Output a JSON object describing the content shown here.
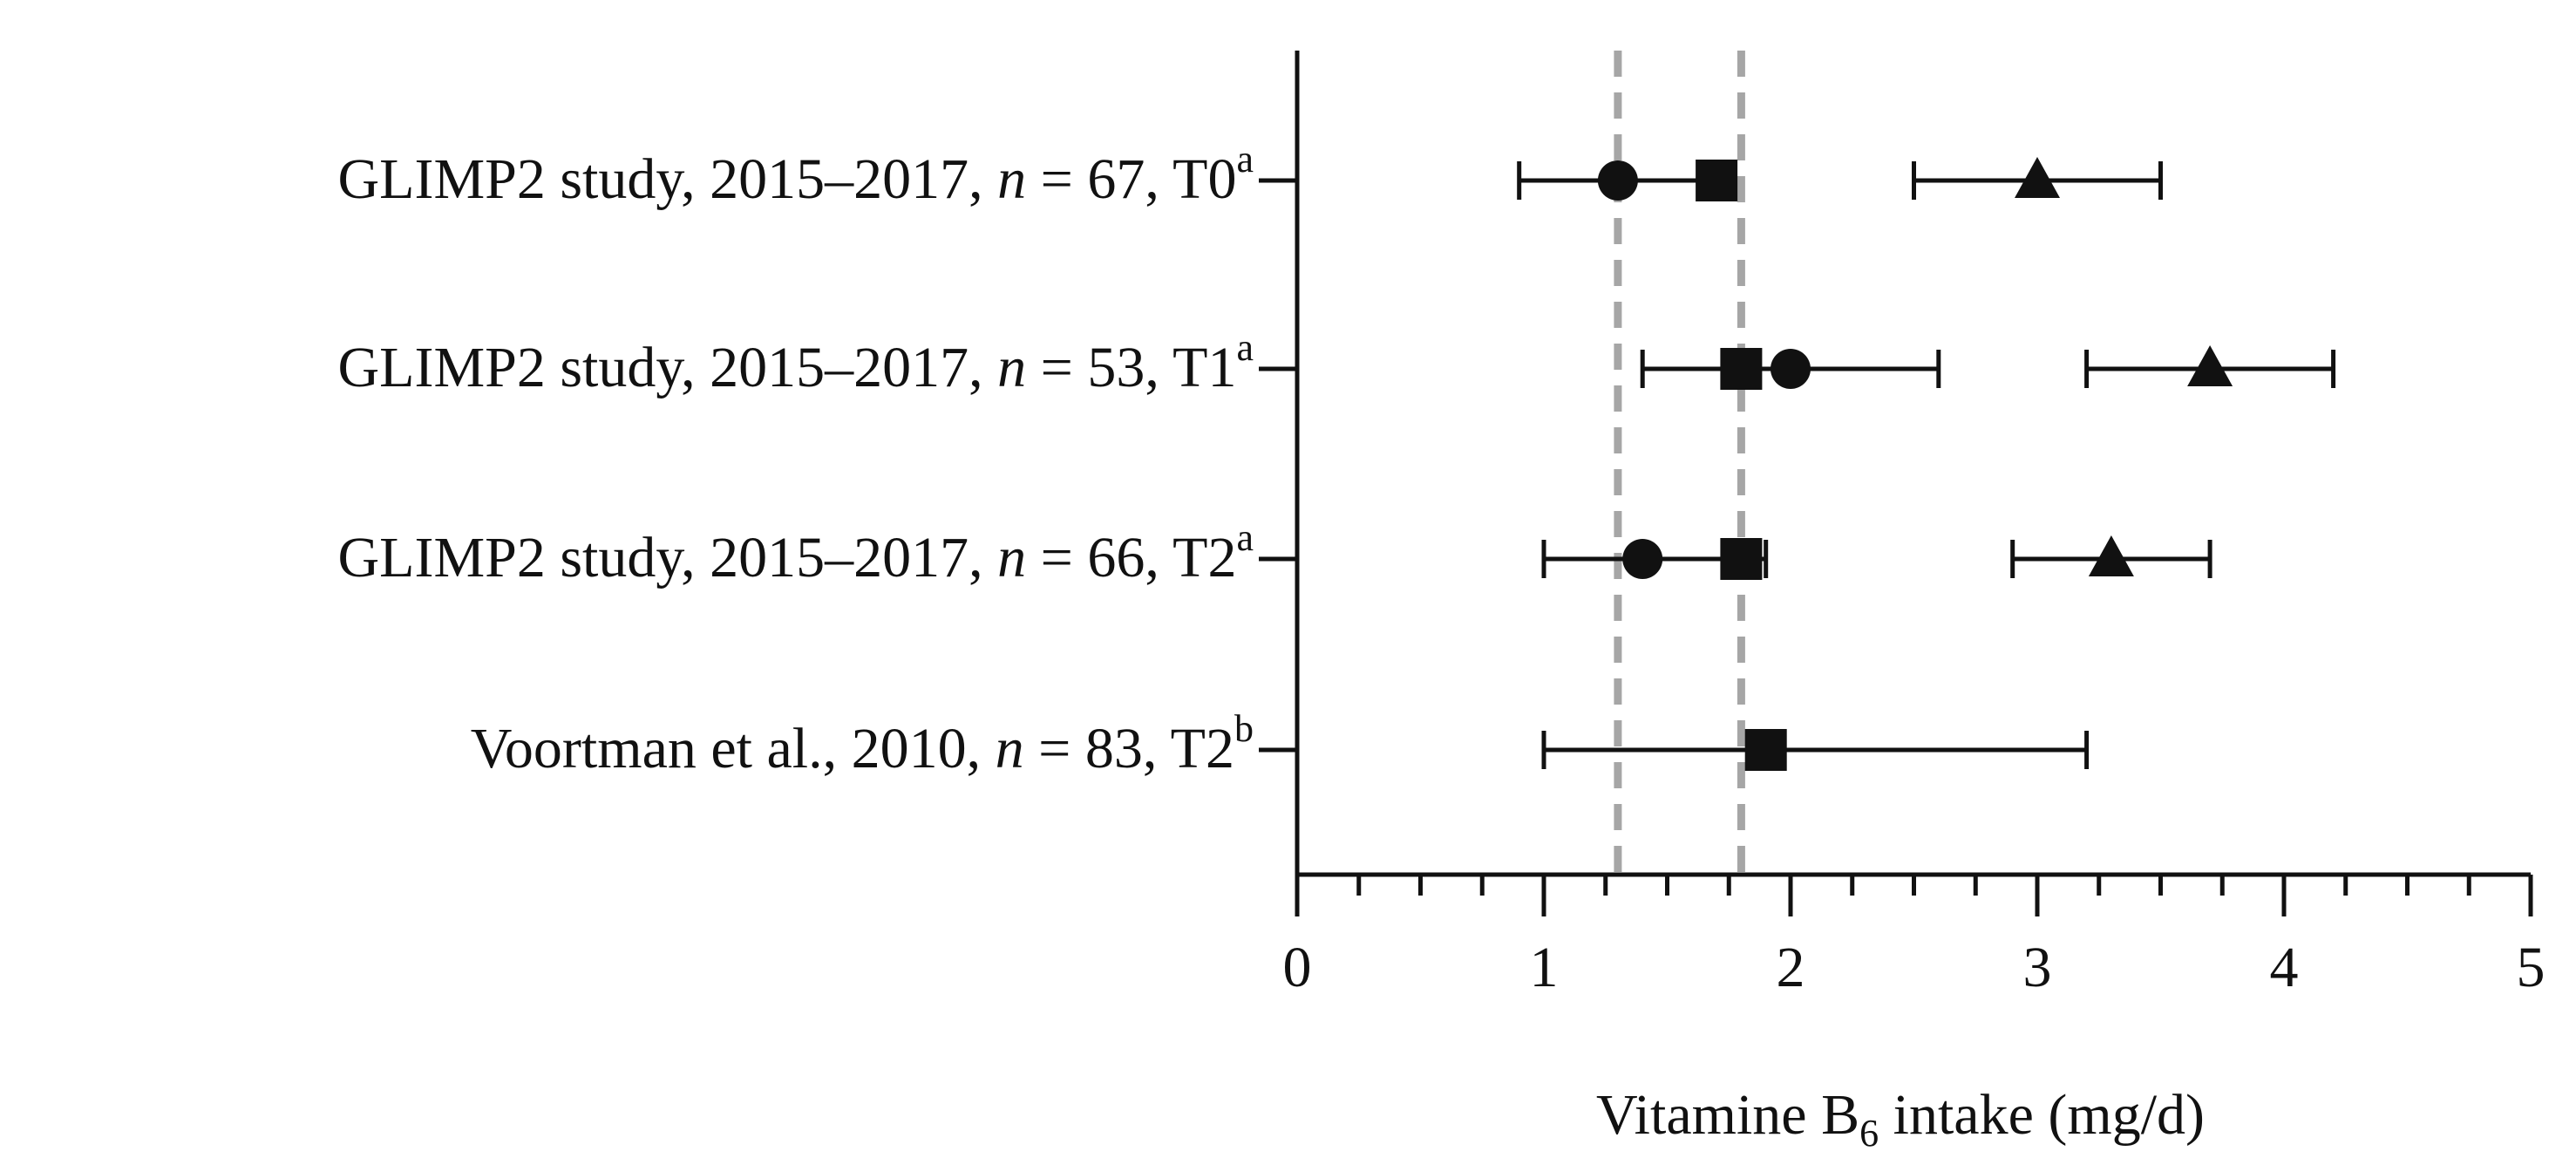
{
  "chart_data": {
    "type": "forest",
    "xlabel": {
      "main": "Vitamine B",
      "subscript": "6",
      "rest": " intake (mg/d)"
    },
    "xlim": [
      0,
      5
    ],
    "xticks_major": [
      0,
      1,
      2,
      3,
      4,
      5
    ],
    "xticks_minor_step": 0.25,
    "reference_lines": [
      1.3,
      1.8
    ],
    "colors": {
      "marker": "#111111",
      "reference": "#a6a6a6"
    },
    "rows": [
      {
        "label": {
          "prefix": "GLIMP2 study, 2015–2017, ",
          "n": "n",
          "mid": " = 67, T0",
          "sup": "a"
        },
        "points": [
          {
            "marker": "circle",
            "value": 1.3,
            "low": 0.9,
            "high": 1.7
          },
          {
            "marker": "square",
            "value": 1.7,
            "low": null,
            "high": null
          },
          {
            "marker": "triangle",
            "value": 3.0,
            "low": 2.5,
            "high": 3.5
          }
        ]
      },
      {
        "label": {
          "prefix": "GLIMP2 study, 2015–2017, ",
          "n": "n",
          "mid": " = 53, T1",
          "sup": "a"
        },
        "points": [
          {
            "marker": "square",
            "value": 1.8,
            "low": null,
            "high": null
          },
          {
            "marker": "circle",
            "value": 2.0,
            "low": 1.4,
            "high": 2.6
          },
          {
            "marker": "triangle",
            "value": 3.7,
            "low": 3.2,
            "high": 4.2
          }
        ]
      },
      {
        "label": {
          "prefix": "GLIMP2 study, 2015–2017, ",
          "n": "n",
          "mid": " = 66, T2",
          "sup": "a"
        },
        "points": [
          {
            "marker": "circle",
            "value": 1.4,
            "low": 1.0,
            "high": 1.9
          },
          {
            "marker": "square",
            "value": 1.8,
            "low": null,
            "high": null
          },
          {
            "marker": "triangle",
            "value": 3.3,
            "low": 2.9,
            "high": 3.7
          }
        ]
      },
      {
        "label": {
          "prefix": "Voortman et al., 2010, ",
          "n": "n",
          "mid": " = 83, T2",
          "sup": "b"
        },
        "points": [
          {
            "marker": "square",
            "value": 1.9,
            "low": 1.0,
            "high": 3.2
          }
        ]
      }
    ]
  }
}
